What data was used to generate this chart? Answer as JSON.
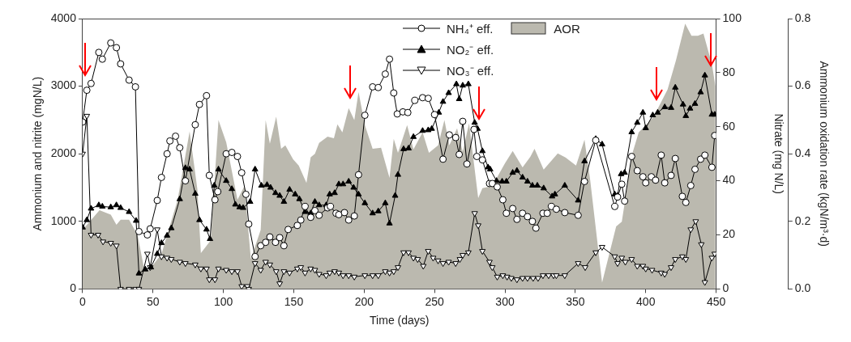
{
  "chart_data": {
    "type": "line",
    "xlabel": "Time (days)",
    "ylabel": "Ammonium and nitrite (mgN/L)",
    "y2label": "Nitrate (mg N/L)",
    "y3label": "Ammonium oxidation rate (kgN/m³·d)",
    "xlim": [
      0,
      450
    ],
    "xticks": [
      0,
      50,
      100,
      150,
      200,
      250,
      300,
      350,
      400,
      450
    ],
    "ylim": [
      0,
      4000
    ],
    "yticks": [
      0,
      1000,
      2000,
      3000,
      4000
    ],
    "y2lim": [
      0,
      100
    ],
    "y2ticks": [
      0,
      20,
      40,
      60,
      80,
      100
    ],
    "y3lim": [
      0,
      0.8
    ],
    "y3ticks": [
      {
        "value": 0,
        "label": "0.0"
      },
      {
        "value": 0.2,
        "label": "0.2"
      },
      {
        "value": 0.4,
        "label": "0.4"
      },
      {
        "value": 0.6,
        "label": "0.6"
      },
      {
        "value": 0.8,
        "label": "0.8"
      }
    ],
    "grid": false,
    "legend": "top",
    "line_style": "solid",
    "series": [
      {
        "name": "NH₄⁺ eff.",
        "color": "#000000",
        "marker": "circle",
        "x": [
          0,
          3,
          6,
          11.5,
          14,
          20,
          24,
          27,
          33,
          37.5,
          40,
          46,
          48,
          53,
          56,
          60,
          62,
          66,
          69,
          73,
          80,
          83,
          88,
          90,
          94,
          96,
          102,
          106,
          110,
          113,
          116,
          118,
          122.5,
          126.5,
          130,
          133,
          137,
          140,
          143,
          146,
          152.5,
          155,
          158,
          162,
          165,
          168,
          174,
          176,
          180,
          182,
          186,
          189,
          193,
          196,
          200.5,
          206,
          210,
          215,
          218,
          221,
          223.5,
          227.5,
          231,
          236,
          241.5,
          245.5,
          250,
          256,
          260.5,
          265,
          267.5,
          270,
          273,
          278,
          280,
          284,
          289,
          291,
          294.5,
          298.5,
          301,
          305.5,
          308.5,
          312.5,
          316,
          319.5,
          322,
          327,
          330,
          333,
          336.5,
          342.5,
          352,
          356.5,
          364.5,
          378,
          380,
          383,
          385,
          390,
          394,
          398,
          400,
          404,
          407,
          411,
          413.5,
          418,
          421,
          426,
          428.5,
          432,
          435,
          439,
          442,
          447,
          449
        ],
        "values": [
          2470,
          2940,
          3040,
          3500,
          3400,
          3640,
          3570,
          3330,
          3090,
          2990,
          850,
          800,
          890,
          1310,
          1650,
          2000,
          2190,
          2260,
          2090,
          1600,
          2430,
          2730,
          2860,
          1680,
          1320,
          1440,
          2000,
          2020,
          1960,
          1720,
          1400,
          960,
          480,
          640,
          690,
          770,
          690,
          760,
          640,
          880,
          940,
          1020,
          1220,
          1060,
          1160,
          1090,
          1200,
          1220,
          1120,
          1100,
          1130,
          1020,
          1080,
          1690,
          2570,
          2990,
          2980,
          3180,
          3400,
          2900,
          2590,
          2620,
          2610,
          2790,
          2830,
          2820,
          2580,
          1920,
          2280,
          2240,
          1990,
          2480,
          1850,
          2360,
          1960,
          1910,
          1560,
          1560,
          1510,
          1320,
          1120,
          1190,
          1030,
          1120,
          1070,
          1000,
          900,
          1120,
          1120,
          1220,
          1180,
          1130,
          1090,
          1590,
          2200,
          1220,
          1360,
          1550,
          1300,
          1960,
          1750,
          1660,
          1570,
          1660,
          1610,
          1980,
          1570,
          1680,
          1930,
          1370,
          1280,
          1530,
          1770,
          1920,
          1980,
          1800,
          2270
        ]
      },
      {
        "name": "NO₂⁻ eff.",
        "color": "#000000",
        "marker": "triangle",
        "x": [
          0,
          3,
          6,
          11.5,
          14,
          20,
          24,
          27,
          33,
          38,
          40,
          44.5,
          48.5,
          53,
          56,
          60,
          63,
          69,
          73,
          76,
          80,
          83,
          88,
          90.5,
          93.5,
          96.5,
          102,
          106,
          108.5,
          111.5,
          114,
          119,
          122.5,
          127,
          131,
          133.5,
          137,
          140,
          143,
          147,
          151,
          154,
          158,
          162,
          165,
          168,
          173,
          175.5,
          179,
          182,
          185,
          189,
          192.5,
          196,
          200.5,
          206,
          210,
          215,
          218,
          222,
          224,
          228,
          231.5,
          235,
          241.5,
          245.5,
          248,
          253,
          256,
          260,
          265.5,
          267.5,
          270,
          274,
          278.5,
          280.5,
          284,
          288,
          289.5,
          294,
          298,
          301,
          305.5,
          308.5,
          312.5,
          316,
          319.5,
          323,
          327.5,
          333.5,
          335.5,
          342.5,
          352,
          356.5,
          364.5,
          369,
          378,
          380,
          382.5,
          385,
          390,
          394,
          398,
          400,
          405,
          408.5,
          413.5,
          418,
          421,
          426.5,
          428.5,
          431.5,
          435,
          439,
          442,
          447,
          449
        ],
        "values": [
          910,
          1020,
          1190,
          1240,
          1220,
          1210,
          1240,
          1200,
          1140,
          1010,
          230,
          290,
          320,
          520,
          680,
          790,
          900,
          1330,
          1790,
          1770,
          1410,
          1020,
          880,
          740,
          1530,
          1770,
          1600,
          1480,
          1250,
          1210,
          1200,
          1290,
          1770,
          1530,
          1540,
          1500,
          1420,
          1380,
          1290,
          1470,
          1400,
          1330,
          1140,
          1120,
          1290,
          1240,
          1240,
          1400,
          1420,
          1550,
          1550,
          1590,
          1500,
          1400,
          1270,
          1120,
          1150,
          1270,
          970,
          1380,
          1690,
          2070,
          2080,
          2250,
          2340,
          2350,
          2370,
          2610,
          2770,
          2900,
          3030,
          2810,
          3010,
          3030,
          2460,
          2370,
          2040,
          1800,
          1770,
          1600,
          1590,
          1590,
          1720,
          1750,
          1650,
          1590,
          1530,
          1530,
          1490,
          1370,
          1400,
          1530,
          1310,
          1890,
          2220,
          2140,
          1400,
          1380,
          1700,
          1720,
          2320,
          2460,
          2610,
          2380,
          2570,
          2610,
          2690,
          2680,
          2980,
          2730,
          2560,
          2670,
          2740,
          2910,
          3160,
          2580,
          2580
        ]
      },
      {
        "name": "NO₃⁻ eff.",
        "axis": "y2",
        "color": "#000000",
        "marker": "triangle_down",
        "x": [
          0,
          3,
          6,
          11,
          14.5,
          20,
          24,
          27,
          33,
          37.5,
          40,
          46,
          48,
          53,
          56,
          60,
          63,
          69,
          73,
          80,
          84,
          88,
          90,
          94,
          96.5,
          102,
          106,
          110,
          113,
          117,
          118,
          122.5,
          126.5,
          130,
          133,
          137.5,
          140,
          143,
          147,
          152.5,
          155,
          158,
          162,
          165,
          168,
          173,
          175.5,
          179,
          182,
          185,
          189,
          193,
          200.5,
          206,
          210,
          215,
          218,
          221,
          224,
          228,
          231.5,
          235,
          238,
          242,
          245.5,
          249,
          252.5,
          256,
          260,
          265,
          268,
          270,
          274,
          278.5,
          281,
          284,
          289,
          291,
          294.5,
          298.5,
          301.5,
          304.5,
          308.5,
          312.5,
          316,
          320,
          323.5,
          327,
          331,
          334.5,
          336.5,
          342.5,
          352,
          357,
          364.5,
          369,
          378,
          380,
          383,
          385.5,
          390,
          394,
          398,
          400,
          404.5,
          411,
          413.5,
          418,
          421,
          426,
          428.5,
          432,
          435.5,
          439.5,
          442,
          447,
          449
        ],
        "values": [
          50,
          64,
          20,
          20,
          17.5,
          17,
          16,
          0,
          0,
          0,
          0,
          13,
          8,
          22,
          12,
          11.5,
          11,
          10,
          9.5,
          9,
          7.5,
          7.5,
          3.5,
          3.5,
          7.5,
          7,
          6.5,
          6.5,
          1,
          1,
          0,
          9.5,
          7,
          10,
          9,
          6.5,
          2,
          6.5,
          6,
          7.5,
          8,
          6,
          7.5,
          7,
          5.5,
          5,
          6,
          6.5,
          6,
          5,
          5,
          4.5,
          5,
          5,
          5,
          6.5,
          6,
          6.5,
          8,
          13.5,
          13.5,
          11.5,
          11,
          8.5,
          14,
          11.5,
          10.5,
          9.5,
          10,
          9.5,
          11,
          12.5,
          13.5,
          28,
          23.5,
          14,
          10,
          8,
          4.5,
          5,
          4.5,
          4,
          3.5,
          4,
          4,
          4,
          4,
          5,
          5,
          5,
          5,
          5,
          9.5,
          8,
          13.5,
          15.5,
          12,
          9.5,
          11.5,
          10,
          11,
          8.5,
          8.5,
          7.5,
          7,
          6,
          5.5,
          8,
          11,
          12,
          11,
          22,
          25,
          16.5,
          2.5,
          11.5,
          13
        ]
      },
      {
        "name": "AOR",
        "type": "area",
        "axis": "y3",
        "color": "#bbb9af",
        "x": [
          0,
          12,
          20,
          24,
          27,
          33,
          39,
          44,
          47,
          56,
          67.5,
          76,
          81.5,
          84,
          91,
          96.5,
          102,
          110,
          115,
          119.5,
          126.5,
          130,
          133,
          137.5,
          141,
          144,
          149.5,
          153.5,
          159,
          162,
          165,
          168,
          174,
          178.5,
          181,
          184.5,
          189,
          193,
          196,
          200.5,
          206,
          212,
          218,
          221,
          224,
          230.5,
          235,
          241.5,
          246,
          252.5,
          257,
          260.5,
          266,
          270,
          274.5,
          281,
          284,
          291,
          300,
          305.5,
          312.5,
          318,
          321,
          327.5,
          337.5,
          343,
          350.5,
          356.5,
          360.5,
          369,
          379,
          383,
          390.5,
          395,
          405.5,
          415.5,
          421.5,
          428,
          432.5,
          437,
          441,
          447,
          449.5
        ],
        "values": [
          0.175,
          0.233,
          0.22,
          0.19,
          0.205,
          0.205,
          0.16,
          0.053,
          0.055,
          0.103,
          0.264,
          0.466,
          0.295,
          0.106,
          0.144,
          0.5,
          0.434,
          0.264,
          0.305,
          0.089,
          0.175,
          0.5,
          0.43,
          0.51,
          0.415,
          0.425,
          0.384,
          0.365,
          0.314,
          0.39,
          0.4,
          0.432,
          0.451,
          0.446,
          0.487,
          0.463,
          0.535,
          0.5,
          0.583,
          0.485,
          0.415,
          0.418,
          0.329,
          0.444,
          0.403,
          0.485,
          0.413,
          0.463,
          0.403,
          0.425,
          0.5,
          0.425,
          0.475,
          0.406,
          0.49,
          0.269,
          0.298,
          0.305,
          0.372,
          0.408,
          0.36,
          0.391,
          0.415,
          0.353,
          0.401,
          0.389,
          0.365,
          0.442,
          0.324,
          0.019,
          0.185,
          0.199,
          0.401,
          0.463,
          0.509,
          0.59,
          0.677,
          0.785,
          0.749,
          0.749,
          0.756,
          0.665,
          0.6
        ]
      }
    ]
  }
}
